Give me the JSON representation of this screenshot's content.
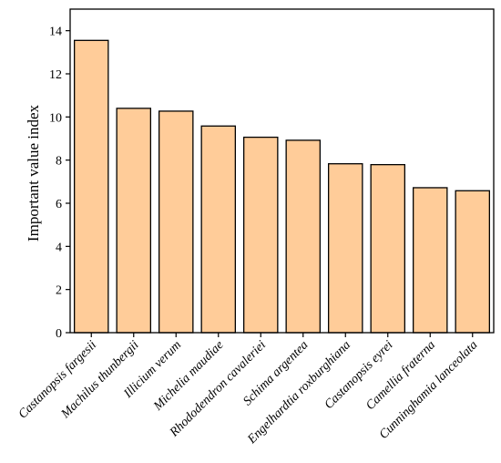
{
  "chart_data": {
    "type": "bar",
    "title": "",
    "xlabel": "",
    "ylabel": "Important value index",
    "ylim": [
      0,
      15
    ],
    "yticks": [
      0,
      2,
      4,
      6,
      8,
      10,
      12,
      14
    ],
    "grid": false,
    "bar_color": "#FFCC99",
    "bar_edge_color": "#000000",
    "categories": [
      "Castanopsis fargesii",
      "Machilus thunbergii",
      "Illicium verum",
      "Michelia maudiae",
      "Rhododendron cavaleriei",
      "Schima argentea",
      "Engelhardtia roxburghiana",
      "Castanopsis eyrei",
      "Camellia fraterna",
      "Cunninghamia lanceolata"
    ],
    "values": [
      13.55,
      10.4,
      10.27,
      9.58,
      9.06,
      8.92,
      7.83,
      7.79,
      6.72,
      6.58
    ]
  }
}
